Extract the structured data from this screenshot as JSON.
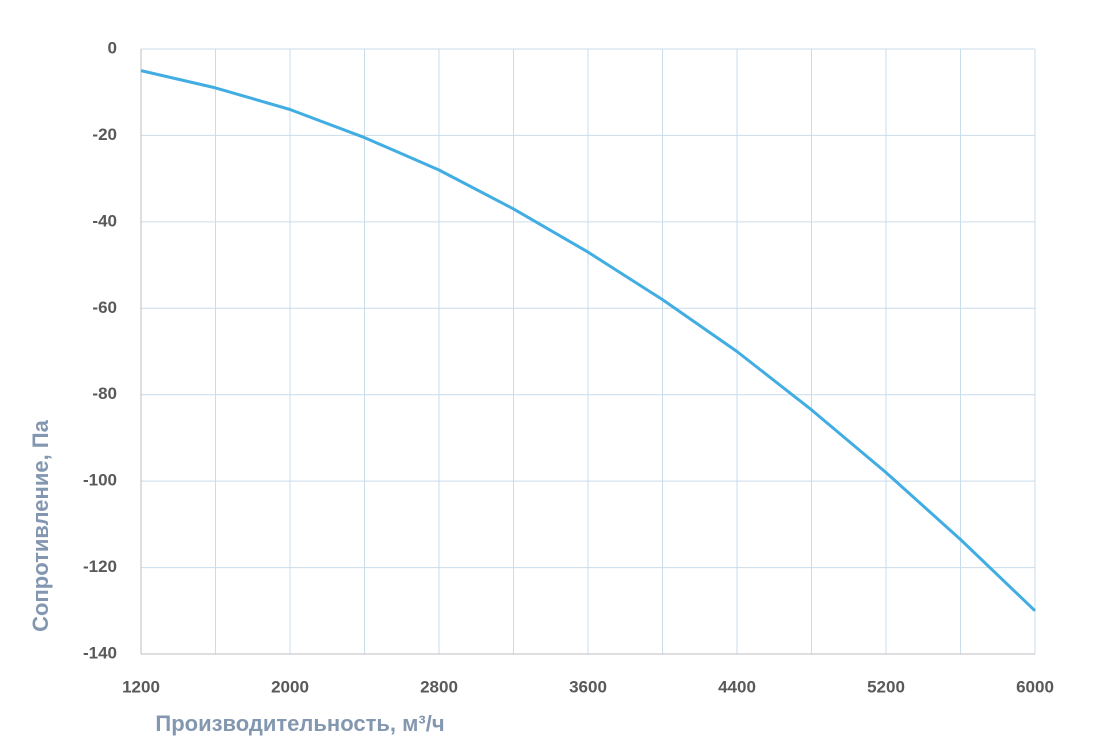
{
  "chart_data": {
    "type": "line",
    "x": [
      1200,
      1600,
      2000,
      2400,
      2800,
      3200,
      3600,
      4000,
      4400,
      4800,
      5200,
      5600,
      6000
    ],
    "series": [
      {
        "color": "#41ade2",
        "values": [
          -5,
          -9,
          -14,
          -20.5,
          -28,
          -37,
          -47,
          -58,
          -70,
          -83.5,
          -98,
          -113.5,
          -130
        ]
      }
    ],
    "xlim": [
      1200,
      6000
    ],
    "xticks": [
      1200,
      2000,
      2800,
      3600,
      4400,
      5200,
      6000
    ],
    "x_minor_grid": [
      1600,
      2400,
      3200,
      4000,
      4800,
      5600
    ],
    "ylim": [
      -140,
      0
    ],
    "yticks": [
      0,
      -20,
      -40,
      -60,
      -80,
      -100,
      -120,
      -140
    ],
    "xlabel": "Производительность, м³/ч",
    "ylabel": "Сопротивление, Па",
    "grid": true
  }
}
